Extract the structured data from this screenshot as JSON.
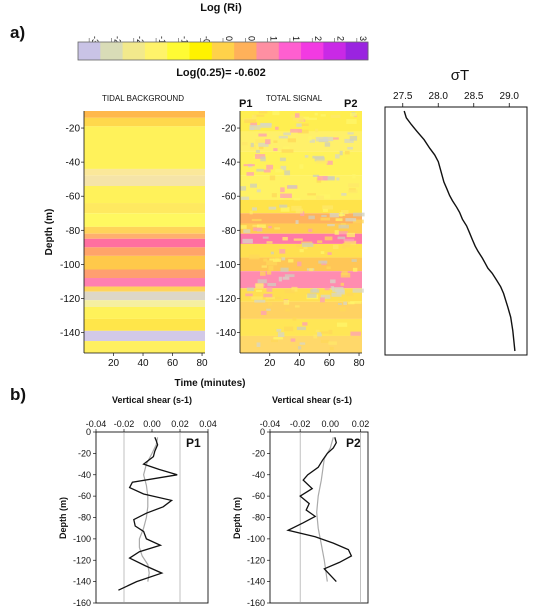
{
  "panel_labels": {
    "a": "a)",
    "b": "b)"
  },
  "colorbar": {
    "title": "Log (Ri)",
    "ticks": [
      "-3",
      "-2.5",
      "-2",
      "-1.5",
      "-1",
      "-0.5",
      "0",
      "0.5",
      "1",
      "1.5",
      "2",
      "2.5",
      "3"
    ],
    "note": "Log(0.25)= -0.602",
    "colors": [
      "#c9c3e6",
      "#d9dcb7",
      "#f2e98c",
      "#fff36a",
      "#fffb34",
      "#fff200",
      "#ffd24a",
      "#ffb15a",
      "#ff8fa2",
      "#ff5fd0",
      "#f23ae2",
      "#c929e6",
      "#9a24e0"
    ]
  },
  "chart_data": [
    {
      "type": "heatmap",
      "title": "TIDAL BACKGROUND",
      "ylabel": "Depth (m)",
      "xlabel": "",
      "xticks": [
        "20",
        "40",
        "60",
        "80"
      ],
      "yticks": [
        "-20",
        "-40",
        "-60",
        "-80",
        "-100",
        "-120",
        "-140"
      ],
      "xlim": [
        0,
        82
      ],
      "ylim": [
        -152,
        -10
      ],
      "bands": [
        {
          "top": -10,
          "bottom": -14,
          "color": "#ffb84c"
        },
        {
          "top": -14,
          "bottom": -19,
          "color": "#ffd84c"
        },
        {
          "top": -19,
          "bottom": -44,
          "color": "#fff25a"
        },
        {
          "top": -44,
          "bottom": -48,
          "color": "#fbe89a"
        },
        {
          "top": -48,
          "bottom": -54,
          "color": "#f5e4a8"
        },
        {
          "top": -54,
          "bottom": -64,
          "color": "#fff25a"
        },
        {
          "top": -64,
          "bottom": -70,
          "color": "#ffe960"
        },
        {
          "top": -70,
          "bottom": -78,
          "color": "#fff860"
        },
        {
          "top": -78,
          "bottom": -82,
          "color": "#ffd45a"
        },
        {
          "top": -82,
          "bottom": -85,
          "color": "#ffb06e"
        },
        {
          "top": -85,
          "bottom": -90,
          "color": "#ff6fa0"
        },
        {
          "top": -90,
          "bottom": -95,
          "color": "#ffa46a"
        },
        {
          "top": -95,
          "bottom": -103,
          "color": "#ffc94a"
        },
        {
          "top": -103,
          "bottom": -108,
          "color": "#ff9f70"
        },
        {
          "top": -108,
          "bottom": -113,
          "color": "#ff80b0"
        },
        {
          "top": -113,
          "bottom": -116,
          "color": "#ffd45a"
        },
        {
          "top": -116,
          "bottom": -121,
          "color": "#ddd7c8"
        },
        {
          "top": -121,
          "bottom": -125,
          "color": "#f5efa0"
        },
        {
          "top": -125,
          "bottom": -132,
          "color": "#fff25a"
        },
        {
          "top": -132,
          "bottom": -139,
          "color": "#ffe64a"
        },
        {
          "top": -139,
          "bottom": -145,
          "color": "#d2c9e8"
        },
        {
          "top": -145,
          "bottom": -152,
          "color": "#fff060"
        }
      ]
    },
    {
      "type": "heatmap",
      "title": "TOTAL SIGNAL",
      "xlabel": "Time (minutes)",
      "xticks": [
        "20",
        "40",
        "60",
        "80"
      ],
      "yticks": [
        "-20",
        "-40",
        "-60",
        "-80",
        "-100",
        "-120",
        "-140"
      ],
      "xlim": [
        0,
        82
      ],
      "ylim": [
        -152,
        -10
      ],
      "markers": [
        "P1",
        "P2"
      ],
      "bands": [
        {
          "top": -10,
          "bottom": -22,
          "color": "#ffee50"
        },
        {
          "top": -22,
          "bottom": -34,
          "color": "#fff06a"
        },
        {
          "top": -34,
          "bottom": -48,
          "color": "#fff25a"
        },
        {
          "top": -48,
          "bottom": -62,
          "color": "#fff264"
        },
        {
          "top": -62,
          "bottom": -70,
          "color": "#ffe34a"
        },
        {
          "top": -70,
          "bottom": -76,
          "color": "#ffb25e"
        },
        {
          "top": -76,
          "bottom": -82,
          "color": "#ffcc52"
        },
        {
          "top": -82,
          "bottom": -88,
          "color": "#ff7aa8"
        },
        {
          "top": -88,
          "bottom": -96,
          "color": "#ffe050"
        },
        {
          "top": -96,
          "bottom": -104,
          "color": "#ffc656"
        },
        {
          "top": -104,
          "bottom": -114,
          "color": "#ff8cb0"
        },
        {
          "top": -114,
          "bottom": -122,
          "color": "#ffdf52"
        },
        {
          "top": -122,
          "bottom": -132,
          "color": "#ffd262"
        },
        {
          "top": -132,
          "bottom": -142,
          "color": "#ffe656"
        },
        {
          "top": -142,
          "bottom": -152,
          "color": "#ffd86a"
        }
      ]
    },
    {
      "type": "line",
      "title": "σT",
      "xticks": [
        "27.5",
        "28.0",
        "28.5",
        "29.0"
      ],
      "xlim": [
        27.25,
        29.25
      ],
      "ylim": [
        -152,
        -10
      ],
      "x": [
        27.52,
        27.55,
        27.62,
        27.7,
        27.8,
        27.88,
        27.95,
        28.0,
        28.04,
        28.08,
        28.12,
        28.16,
        28.2,
        28.26,
        28.3,
        28.34,
        28.4,
        28.44,
        28.48,
        28.52,
        28.56,
        28.62,
        28.66,
        28.7,
        28.76,
        28.82,
        28.88,
        28.92,
        28.95,
        28.98,
        29.02,
        29.05,
        29.07,
        29.08
      ],
      "y": [
        -10,
        -14,
        -18,
        -22,
        -27,
        -32,
        -36,
        -40,
        -46,
        -52,
        -56,
        -60,
        -63,
        -67,
        -70,
        -74,
        -78,
        -82,
        -86,
        -90,
        -93,
        -97,
        -100,
        -103,
        -106,
        -110,
        -114,
        -118,
        -122,
        -126,
        -132,
        -140,
        -148,
        -152
      ]
    },
    {
      "type": "line",
      "title": "Vertical shear (s-1)",
      "ylabel": "Depth (m)",
      "marker": "P1",
      "xticks": [
        "-0.04",
        "-0.02",
        "0.00",
        "0.02",
        "0.04"
      ],
      "yticks": [
        "0",
        "-20",
        "-40",
        "-60",
        "-80",
        "-100",
        "-120",
        "-140",
        "-160"
      ],
      "xlim": [
        -0.04,
        0.04
      ],
      "ylim": [
        -160,
        0
      ],
      "series": [
        {
          "values_x": [
            0.002,
            0.003,
            0.004,
            0.002,
            0.001,
            -0.006,
            0.005,
            0.018,
            -0.014,
            -0.016,
            -0.006,
            0.014,
            0.008,
            -0.004,
            -0.013,
            -0.012,
            -0.006,
            -0.004,
            0.006,
            -0.009,
            -0.016,
            -0.005,
            0.007,
            -0.011,
            -0.024
          ],
          "values_y": [
            -5,
            -8,
            -12,
            -18,
            -23,
            -30,
            -35,
            -40,
            -47,
            -52,
            -58,
            -64,
            -70,
            -76,
            -82,
            -88,
            -93,
            -100,
            -106,
            -112,
            -118,
            -125,
            -132,
            -140,
            -148
          ]
        },
        {
          "values_x": [
            0.004,
            0.003,
            0.0,
            -0.004,
            -0.006,
            -0.004,
            -0.003,
            -0.003,
            -0.004,
            -0.006,
            -0.009,
            -0.009,
            -0.007,
            -0.003,
            -0.002,
            -0.003
          ],
          "values_y": [
            -5,
            -12,
            -20,
            -30,
            -40,
            -50,
            -60,
            -70,
            -80,
            -90,
            -100,
            -108,
            -116,
            -124,
            -132,
            -140
          ]
        }
      ]
    },
    {
      "type": "line",
      "title": "Vertical shear (s-1)",
      "ylabel": "Depth (m)",
      "marker": "P2",
      "xticks": [
        "-0.04",
        "-0.02",
        "0.00",
        "0.02"
      ],
      "yticks": [
        "0",
        "-20",
        "-40",
        "-60",
        "-80",
        "-100",
        "-120",
        "-140",
        "-160"
      ],
      "xlim": [
        -0.04,
        0.025
      ],
      "ylim": [
        -160,
        0
      ],
      "series": [
        {
          "values_x": [
            0.003,
            0.004,
            0.002,
            -0.002,
            -0.005,
            -0.008,
            -0.015,
            -0.018,
            -0.012,
            -0.02,
            -0.014,
            -0.016,
            -0.01,
            -0.018,
            -0.028,
            -0.01,
            0.002,
            0.012,
            0.014,
            0.006,
            -0.004,
            0.0,
            0.004
          ],
          "values_y": [
            -5,
            -10,
            -15,
            -20,
            -26,
            -33,
            -40,
            -45,
            -53,
            -60,
            -67,
            -73,
            -79,
            -85,
            -92,
            -98,
            -104,
            -110,
            -116,
            -122,
            -128,
            -134,
            -140
          ]
        },
        {
          "values_x": [
            0.002,
            0.0,
            -0.004,
            -0.005,
            -0.006,
            -0.008,
            -0.009,
            -0.008,
            -0.006,
            -0.004,
            -0.003,
            -0.002
          ],
          "values_y": [
            -5,
            -15,
            -25,
            -35,
            -45,
            -60,
            -75,
            -90,
            -105,
            -120,
            -130,
            -140
          ]
        }
      ]
    }
  ],
  "colors": {
    "axis": "#111111",
    "grid_ref": "#999999",
    "mean_profile": "#aaaaaa",
    "profile": "#111111"
  }
}
